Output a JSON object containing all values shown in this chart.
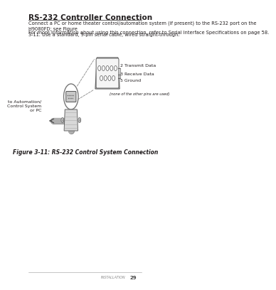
{
  "title": "RS-232 Controller Connection",
  "body_text_1": "Connect a PC or home theater control/automation system (if present) to the RS-232 port on the H9080FD; see Figure\n3-11. Use a standard, 9-pin serial cable, wired straight-through.",
  "body_text_2": "For more information about using this connection, refer to Serial Interface Specifications on page 58.",
  "figure_caption": "Figure 3-11: RS-232 Control System Connection",
  "label_transmit": "2 Transmit Data",
  "label_receive": "3 Receive Data",
  "label_ground": "5 Ground",
  "label_none": "(none of the other pins are used)",
  "label_automation": "to Automation/\nControl System\nor PC",
  "footer_text": "INSTALLATION",
  "footer_page": "29",
  "bg_color": "#ffffff",
  "text_color": "#231f20",
  "connector_color": "#d0cece",
  "connector_outline": "#555555",
  "line_color": "#888888",
  "dashed_line_color": "#888888"
}
